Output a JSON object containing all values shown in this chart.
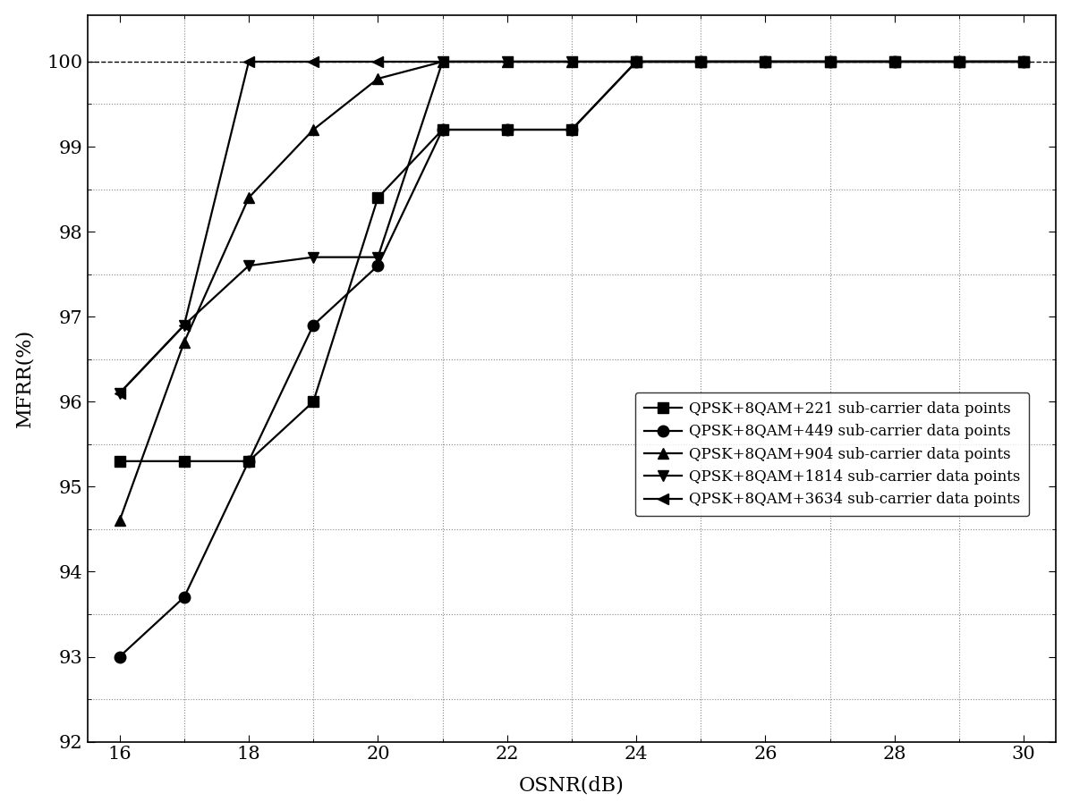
{
  "series": [
    {
      "label": "QPSK+8QAM+221 sub-carrier data points",
      "marker": "s",
      "x": [
        16,
        17,
        18,
        19,
        20,
        21,
        22,
        23,
        24,
        25,
        26,
        27,
        28,
        29,
        30
      ],
      "y": [
        95.3,
        95.3,
        95.3,
        96.0,
        98.4,
        99.2,
        99.2,
        99.2,
        100.0,
        100.0,
        100.0,
        100.0,
        100.0,
        100.0,
        100.0
      ]
    },
    {
      "label": "QPSK+8QAM+449 sub-carrier data points",
      "marker": "o",
      "x": [
        16,
        17,
        18,
        19,
        20,
        21,
        22,
        23,
        24,
        25,
        26,
        27,
        28,
        29,
        30
      ],
      "y": [
        93.0,
        93.7,
        95.3,
        96.9,
        97.6,
        99.2,
        99.2,
        99.2,
        100.0,
        100.0,
        100.0,
        100.0,
        100.0,
        100.0,
        100.0
      ]
    },
    {
      "label": "QPSK+8QAM+904 sub-carrier data points",
      "marker": "^",
      "x": [
        16,
        17,
        18,
        19,
        20,
        21,
        22,
        23,
        24,
        25,
        26,
        27,
        28,
        29,
        30
      ],
      "y": [
        94.6,
        96.7,
        98.4,
        99.2,
        99.8,
        100.0,
        100.0,
        100.0,
        100.0,
        100.0,
        100.0,
        100.0,
        100.0,
        100.0,
        100.0
      ]
    },
    {
      "label": "QPSK+8QAM+1814 sub-carrier data points",
      "marker": "v",
      "x": [
        16,
        17,
        18,
        19,
        20,
        21,
        22,
        23,
        24,
        25,
        26,
        27,
        28,
        29,
        30
      ],
      "y": [
        96.1,
        96.9,
        97.6,
        97.7,
        97.7,
        100.0,
        100.0,
        100.0,
        100.0,
        100.0,
        100.0,
        100.0,
        100.0,
        100.0,
        100.0
      ]
    },
    {
      "label": "QPSK+8QAM+3634 sub-carrier data points",
      "marker": "<",
      "x": [
        16,
        17,
        18,
        19,
        20,
        21,
        22,
        23,
        24,
        25,
        26,
        27,
        28,
        29,
        30
      ],
      "y": [
        96.1,
        96.9,
        100.0,
        100.0,
        100.0,
        100.0,
        100.0,
        100.0,
        100.0,
        100.0,
        100.0,
        100.0,
        100.0,
        100.0,
        100.0
      ]
    }
  ],
  "xlabel": "OSNR(dB)",
  "ylabel": "MFRR(%)",
  "xlim": [
    15.5,
    30.5
  ],
  "ylim": [
    92.0,
    100.55
  ],
  "xticks": [
    16,
    18,
    20,
    22,
    24,
    26,
    28,
    30
  ],
  "yticks": [
    92,
    93,
    94,
    95,
    96,
    97,
    98,
    99,
    100
  ],
  "y_minor_ticks": [
    92.5,
    93.5,
    94.5,
    95.5,
    96.5,
    97.5,
    98.5,
    99.5
  ],
  "x_minor_ticks": [
    17,
    19,
    21,
    23,
    25,
    27,
    29
  ],
  "line_color": "#000000",
  "marker_size": 9,
  "line_width": 1.6,
  "legend_fontsize": 12,
  "axis_label_fontsize": 16,
  "tick_fontsize": 15,
  "background_color": "#ffffff"
}
